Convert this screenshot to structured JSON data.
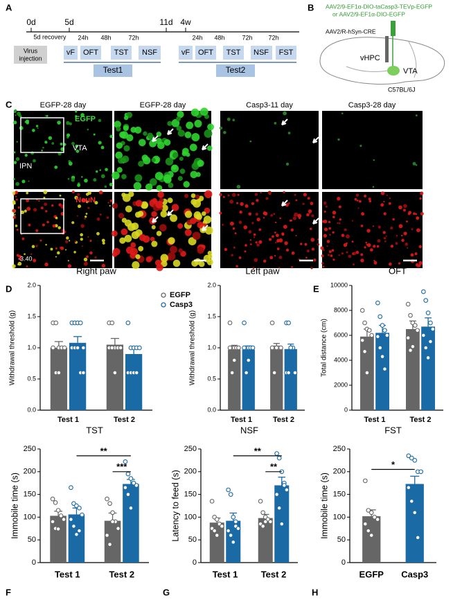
{
  "panel_a": {
    "label": "A",
    "timepoints": [
      "0d",
      "5d",
      "11d",
      "4w"
    ],
    "recovery": "5d recovery",
    "intervals": [
      "24h",
      "48h",
      "72h",
      "24h",
      "48h",
      "72h",
      "72h"
    ],
    "virus": [
      "Virus",
      "injection"
    ],
    "tests1": [
      "vF",
      "OFT",
      "TST",
      "NSF"
    ],
    "tests2": [
      "vF",
      "OFT",
      "TST",
      "NSF",
      "FST"
    ],
    "groups": [
      "Test1",
      "Test2"
    ]
  },
  "panel_b": {
    "label": "B",
    "virus_green": [
      "AAV2/9-EF1α-DIO-taCasp3-TEVp-EGFP",
      "or AAV2/9-EF1α-DIO-EGFP"
    ],
    "virus_retro": "AAV2/R-hSyn-CRE",
    "regions": [
      "vHPC",
      "VTA"
    ],
    "strain": "C57BL/6J"
  },
  "panel_c": {
    "label": "C",
    "columns": [
      "EGFP-28 day",
      "EGFP-28 day",
      "Casp3-11 day",
      "Casp3-28 day"
    ],
    "channels": [
      "EGFP",
      "NeuN"
    ],
    "regions": [
      "VTA",
      "IPN"
    ],
    "coordinate": "-3.40"
  },
  "chart_data": [
    {
      "type": "bar",
      "panel": "D",
      "title": "Right paw",
      "ylabel": "Withdrawal threshold (g)",
      "categories": [
        "Test 1",
        "Test 2"
      ],
      "ylim": [
        0,
        2
      ],
      "yticks": [
        {
          "value": 0,
          "label": "0.0"
        },
        0.5,
        {
          "value": 1,
          "label": "1.0"
        },
        1.5,
        {
          "value": 2,
          "label": "2.0"
        }
      ],
      "legend": "upper right",
      "series": [
        {
          "name": "EGFP",
          "color": "#666666",
          "values": [
            1.0,
            1.05
          ],
          "errors": [
            0.1,
            0.1
          ],
          "points": [
            [
              1.4,
              1.4,
              1.0,
              1.0,
              1.0,
              1.0,
              0.6,
              0.6
            ],
            [
              1.4,
              1.4,
              1.0,
              1.0,
              1.0,
              1.0,
              1.0,
              0.6
            ]
          ]
        },
        {
          "name": "Casp3",
          "color": "#1a6aa6",
          "values": [
            1.08,
            0.9
          ],
          "errors": [
            0.1,
            0.08
          ],
          "points": [
            [
              1.4,
              1.4,
              1.4,
              1.4,
              1.0,
              1.0,
              1.0,
              1.0,
              0.6,
              0.6
            ],
            [
              1.4,
              1.0,
              1.0,
              1.0,
              1.0,
              0.6,
              0.6,
              0.6,
              0.6
            ]
          ]
        }
      ]
    },
    {
      "type": "bar",
      "title": "Left paw",
      "ylabel": "Withdrawal threshold (g)",
      "categories": [
        "Test 1",
        "Test 2"
      ],
      "ylim": [
        0,
        2
      ],
      "yticks": [
        {
          "value": 0,
          "label": "0.0"
        },
        0.5,
        {
          "value": 1,
          "label": "1.0"
        },
        1.5,
        {
          "value": 2,
          "label": "2.0"
        }
      ],
      "series": [
        {
          "color": "#666666",
          "values": [
            0.97,
            1.0
          ],
          "errors": [
            0.07,
            0.07
          ],
          "points": [
            [
              1.4,
              1.0,
              1.0,
              1.0,
              1.0,
              1.0,
              0.6,
              0.8
            ],
            [
              1.4,
              1.0,
              1.0,
              1.0,
              1.0,
              1.0,
              0.6,
              1.0
            ]
          ]
        },
        {
          "color": "#1a6aa6",
          "values": [
            0.97,
            0.98
          ],
          "errors": [
            0.06,
            0.08
          ],
          "points": [
            [
              1.4,
              1.0,
              1.0,
              1.0,
              1.0,
              1.0,
              0.6,
              0.8
            ],
            [
              1.4,
              1.4,
              1.0,
              1.0,
              0.6,
              0.6,
              0.6,
              1.0
            ]
          ]
        }
      ]
    },
    {
      "type": "bar",
      "panel": "E",
      "title": "OFT",
      "ylabel": "Total distance (cm)",
      "categories": [
        "Test 1",
        "Test 2"
      ],
      "ylim": [
        0,
        10000
      ],
      "yticks": [
        0,
        2000,
        4000,
        6000,
        8000,
        10000
      ],
      "series": [
        {
          "color": "#666666",
          "values": [
            5900,
            6500
          ],
          "errors": [
            600,
            650
          ],
          "points": [
            [
              8000,
              7000,
              6500,
              6400,
              6000,
              5600,
              4700,
              3000
            ],
            [
              8500,
              7600,
              7000,
              6800,
              6400,
              5800,
              4800,
              5100
            ]
          ]
        },
        {
          "color": "#1a6aa6",
          "values": [
            6200,
            6700
          ],
          "errors": [
            600,
            700
          ],
          "points": [
            [
              8600,
              7500,
              6800,
              6400,
              6000,
              5900,
              5000,
              4300,
              3300
            ],
            [
              9500,
              8800,
              7800,
              7000,
              6500,
              6000,
              5000,
              4200,
              5500
            ]
          ]
        }
      ]
    },
    {
      "type": "bar",
      "panel": "F",
      "title": "TST",
      "ylabel": "Immobile time (s)",
      "categories": [
        "Test 1",
        "Test 2"
      ],
      "ylim": [
        0,
        250
      ],
      "yticks": [
        0,
        50,
        100,
        150,
        200,
        250
      ],
      "annotations": [
        "**",
        "***"
      ],
      "series": [
        {
          "color": "#666666",
          "values": [
            103,
            92
          ],
          "errors": [
            10,
            17
          ],
          "points": [
            [
              140,
              132,
              115,
              103,
              95,
              90,
              75,
              74
            ],
            [
              140,
              130,
              110,
              90,
              75,
              60,
              40,
              90
            ]
          ]
        },
        {
          "color": "#1a6aa6",
          "values": [
            106,
            173
          ],
          "errors": [
            14,
            10
          ],
          "points": [
            [
              165,
              130,
              125,
              120,
              105,
              95,
              80,
              62,
              70
            ],
            [
              222,
              195,
              185,
              175,
              170,
              165,
              150,
              120,
              175
            ]
          ]
        }
      ]
    },
    {
      "type": "bar",
      "panel": "G",
      "title": "NSF",
      "ylabel": "Latency to feed (s)",
      "categories": [
        "Test 1",
        "Test 2"
      ],
      "ylim": [
        0,
        250
      ],
      "yticks": [
        0,
        50,
        100,
        150,
        200,
        250
      ],
      "annotations": [
        "**",
        "**"
      ],
      "series": [
        {
          "color": "#666666",
          "values": [
            88,
            98
          ],
          "errors": [
            10,
            8
          ],
          "points": [
            [
              135,
              100,
              95,
              85,
              80,
              75,
              70,
              60
            ],
            [
              135,
              110,
              100,
              95,
              90,
              85,
              80,
              90
            ]
          ]
        },
        {
          "color": "#1a6aa6",
          "values": [
            92,
            170
          ],
          "errors": [
            17,
            18
          ],
          "points": [
            [
              160,
              150,
              100,
              80,
              75,
              70,
              60,
              45,
              90
            ],
            [
              240,
              230,
              200,
              175,
              160,
              150,
              120,
              85,
              170
            ]
          ]
        }
      ]
    },
    {
      "type": "bar",
      "panel": "H",
      "title": "FST",
      "ylabel": "Immobile time (s)",
      "categories": [
        "EGFP",
        "Casp3"
      ],
      "ylim": [
        0,
        250
      ],
      "yticks": [
        0,
        50,
        100,
        150,
        200,
        250
      ],
      "annotations": [
        "*"
      ],
      "series": [
        {
          "colors": [
            "#666666",
            "#1a6aa6"
          ],
          "values": [
            102,
            173
          ],
          "errors": [
            14,
            17
          ],
          "points": [
            [
              180,
              115,
              110,
              100,
              95,
              85,
              70,
              60
            ],
            [
              235,
              230,
              225,
              200,
              200,
              165,
              135,
              110,
              55
            ]
          ]
        }
      ]
    }
  ]
}
